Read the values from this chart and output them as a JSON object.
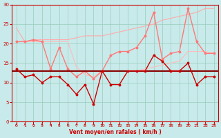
{
  "xlabel": "Vent moyen/en rafales ( km/h )",
  "xlim": [
    -0.5,
    23.5
  ],
  "ylim": [
    0,
    30
  ],
  "yticks": [
    0,
    5,
    10,
    15,
    20,
    25,
    30
  ],
  "xticks": [
    0,
    1,
    2,
    3,
    4,
    5,
    6,
    7,
    8,
    9,
    10,
    11,
    12,
    13,
    14,
    15,
    16,
    17,
    18,
    19,
    20,
    21,
    22,
    23
  ],
  "background_color": "#c8eaea",
  "grid_color": "#99ccbb",
  "line_mean": {
    "y": 13.0,
    "color": "#880000",
    "lw": 1.5
  },
  "line_lower_dark": {
    "x": [
      0,
      1,
      2,
      3,
      4,
      5,
      6,
      7,
      8,
      9,
      10,
      11,
      12,
      13,
      14,
      15,
      16,
      17,
      18,
      19,
      20,
      21,
      22,
      23
    ],
    "y": [
      13.5,
      11.5,
      12,
      10,
      11.5,
      11.5,
      9.5,
      7,
      9.5,
      4.5,
      13,
      9.5,
      9.5,
      13,
      13,
      13,
      17,
      15.5,
      13,
      13,
      15,
      9.5,
      11.5,
      11.5
    ],
    "color": "#cc0000",
    "lw": 1.0
  },
  "line_medium_pink": {
    "x": [
      0,
      1,
      2,
      3,
      4,
      5,
      6,
      7,
      8,
      9,
      10,
      11,
      12,
      13,
      14,
      15,
      16,
      17,
      18,
      19,
      20,
      21,
      22,
      23
    ],
    "y": [
      20.5,
      20.5,
      21,
      20.5,
      13.5,
      19,
      13.5,
      11.5,
      13,
      11,
      13,
      17,
      18,
      18,
      19,
      22,
      28,
      16,
      17.5,
      18,
      29,
      20.5,
      17.5,
      17.5
    ],
    "color": "#ff7777",
    "lw": 1.0
  },
  "line_upper_pale": {
    "x": [
      0,
      1,
      2,
      3,
      4,
      5,
      6,
      7,
      8,
      9,
      10,
      11,
      12,
      13,
      14,
      15,
      16,
      17,
      18,
      19,
      20,
      21,
      22,
      23
    ],
    "y": [
      24,
      20.5,
      21,
      21,
      21,
      21,
      21,
      21.5,
      22,
      22,
      22,
      22.5,
      23,
      23.5,
      24,
      24.5,
      25,
      26,
      26.5,
      27,
      27.5,
      28,
      29,
      29
    ],
    "color": "#ffaaaa",
    "lw": 0.8
  },
  "line_lower_pale": {
    "x": [
      0,
      1,
      2,
      3,
      4,
      5,
      6,
      7,
      8,
      9,
      10,
      11,
      12,
      13,
      14,
      15,
      16,
      17,
      18,
      19,
      20,
      21,
      22,
      23
    ],
    "y": [
      20.5,
      20.5,
      20.5,
      20.5,
      20.5,
      20.5,
      20.5,
      14,
      12,
      11.5,
      13,
      13,
      13,
      13,
      13,
      13.5,
      14,
      14.5,
      15,
      15.5,
      18,
      18,
      18,
      17.5
    ],
    "color": "#ffbbbb",
    "lw": 0.8
  },
  "arrow_angles": [
    90,
    90,
    90,
    90,
    90,
    90,
    90,
    90,
    90,
    80,
    90,
    90,
    90,
    80,
    80,
    90,
    90,
    90,
    90,
    90,
    45,
    45,
    45,
    45
  ],
  "arrow_color": "#cc0000"
}
